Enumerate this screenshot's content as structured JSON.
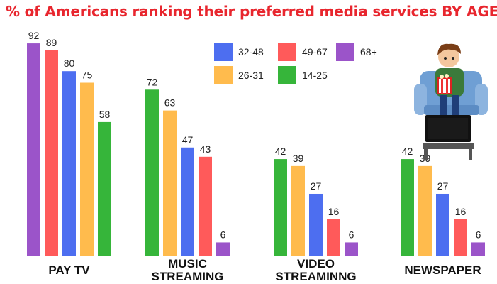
{
  "title": "% of Americans ranking their preferred media services BY AGE",
  "colors": {
    "68+": "#9b54c9",
    "49-67": "#ff5a5a",
    "32-48": "#4d6ef0",
    "26-31": "#ffbb4d",
    "14-25": "#36b53a"
  },
  "legend": [
    {
      "label": "32-48",
      "color_key": "32-48"
    },
    {
      "label": "49-67",
      "color_key": "49-67"
    },
    {
      "label": "68+",
      "color_key": "68+"
    },
    {
      "label": "26-31",
      "color_key": "26-31"
    },
    {
      "label": "14-25",
      "color_key": "14-25"
    }
  ],
  "chart_data": {
    "type": "bar",
    "title": "% of Americans ranking their preferred media services BY AGE",
    "legend_position": "top-center",
    "grid": false,
    "ylim": [
      0,
      100
    ],
    "categories": [
      "PAY TV",
      "MUSIC\nSTREAMING",
      "VIDEO\nSTREAMINNG",
      "NEWSPAPER"
    ],
    "groups": [
      {
        "category": "PAY TV",
        "bars": [
          {
            "series": "68+",
            "value": 92
          },
          {
            "series": "49-67",
            "value": 89
          },
          {
            "series": "32-48",
            "value": 80
          },
          {
            "series": "26-31",
            "value": 75
          },
          {
            "series": "14-25",
            "value": 58
          }
        ]
      },
      {
        "category": "MUSIC STREAMING",
        "bars": [
          {
            "series": "14-25",
            "value": 72
          },
          {
            "series": "26-31",
            "value": 63
          },
          {
            "series": "32-48",
            "value": 47
          },
          {
            "series": "49-67",
            "value": 43
          },
          {
            "series": "68+",
            "value": 6
          }
        ]
      },
      {
        "category": "VIDEO STREAMINNG",
        "bars": [
          {
            "series": "14-25",
            "value": 42
          },
          {
            "series": "26-31",
            "value": 39
          },
          {
            "series": "32-48",
            "value": 27
          },
          {
            "series": "49-67",
            "value": 16
          },
          {
            "series": "68+",
            "value": 6
          }
        ]
      },
      {
        "category": "NEWSPAPER",
        "bars": [
          {
            "series": "14-25",
            "value": 42
          },
          {
            "series": "26-31",
            "value": 39
          },
          {
            "series": "32-48",
            "value": 27
          },
          {
            "series": "49-67",
            "value": 16
          },
          {
            "series": "68+",
            "value": 6
          }
        ]
      }
    ]
  },
  "illustration": {
    "icon": "person-watching-tv-icon"
  }
}
